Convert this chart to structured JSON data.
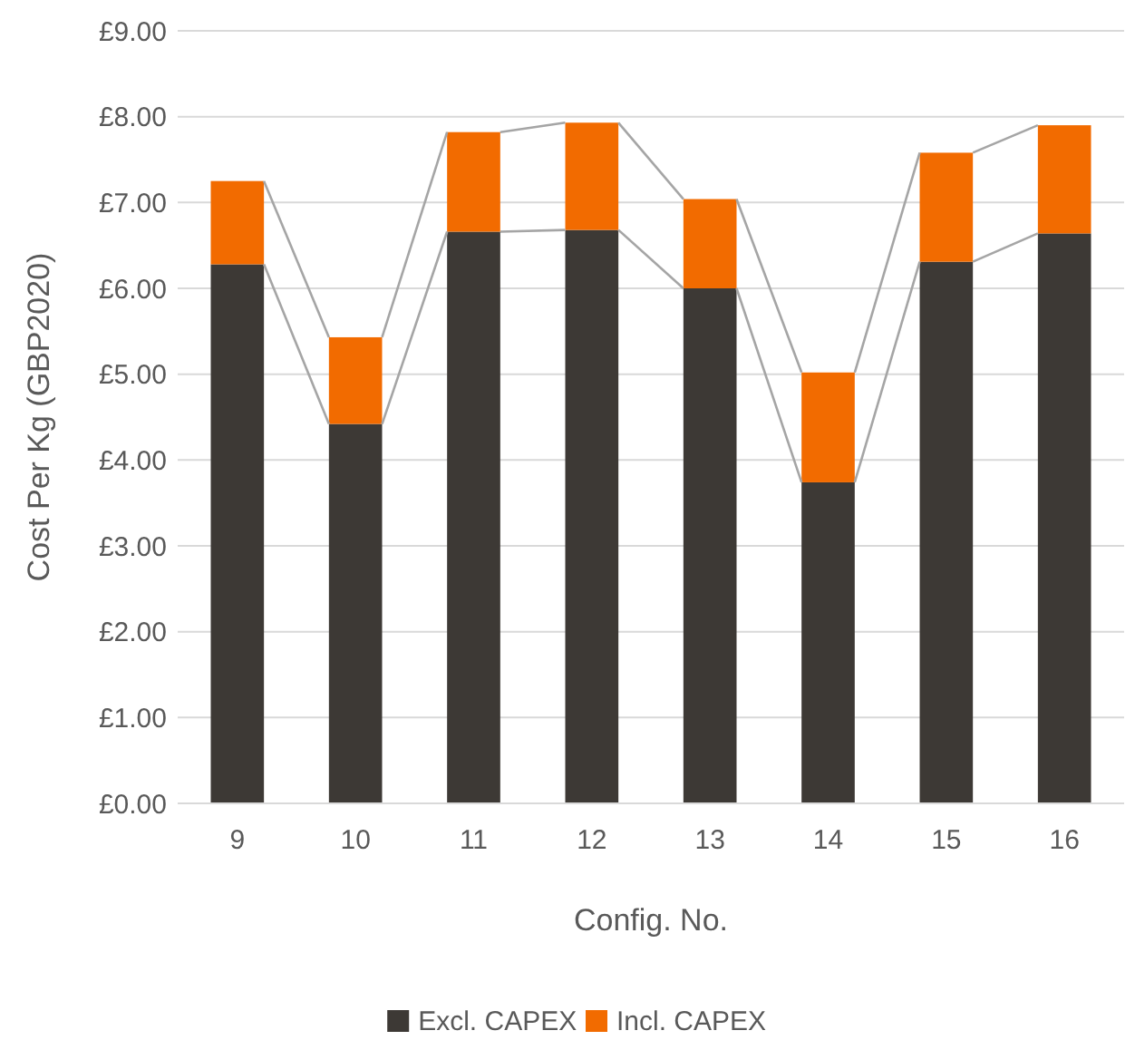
{
  "chart_data": {
    "type": "bar",
    "stacked": true,
    "xlabel": "Config. No.",
    "ylabel": "Cost Per Kg (GBP2020)",
    "categories": [
      "9",
      "10",
      "11",
      "12",
      "13",
      "14",
      "15",
      "16"
    ],
    "series": [
      {
        "name": "Excl. CAPEX",
        "color": "#3d3935",
        "values": [
          6.28,
          4.42,
          6.66,
          6.68,
          6.0,
          3.74,
          6.31,
          6.64
        ]
      },
      {
        "name": "Incl. CAPEX",
        "color": "#f26b00",
        "values": [
          0.97,
          1.01,
          1.16,
          1.25,
          1.04,
          1.28,
          1.27,
          1.26
        ]
      }
    ],
    "ylim": [
      0,
      9
    ],
    "yticks": [
      {
        "value": 0,
        "label": "£0.00"
      },
      {
        "value": 1,
        "label": "£1.00"
      },
      {
        "value": 2,
        "label": "£2.00"
      },
      {
        "value": 3,
        "label": "£3.00"
      },
      {
        "value": 4,
        "label": "£4.00"
      },
      {
        "value": 5,
        "label": "£5.00"
      },
      {
        "value": 6,
        "label": "£6.00"
      },
      {
        "value": 7,
        "label": "£7.00"
      },
      {
        "value": 8,
        "label": "£8.00"
      },
      {
        "value": 9,
        "label": "£9.00"
      }
    ],
    "grid": "y",
    "legend": "bottom"
  }
}
